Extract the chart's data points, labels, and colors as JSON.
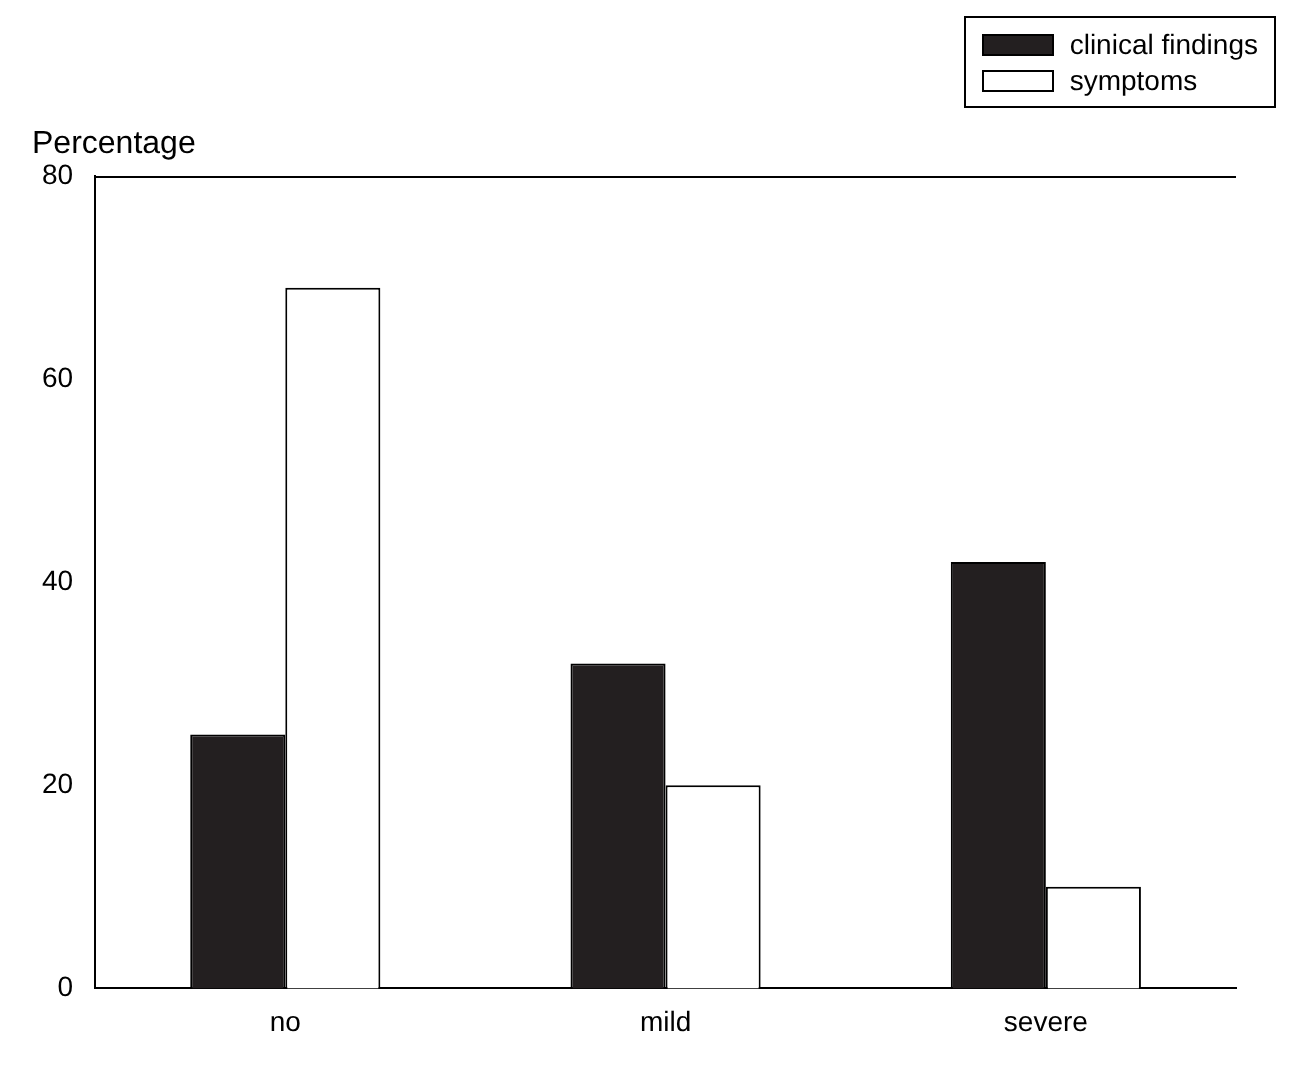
{
  "chart_data": {
    "type": "bar",
    "ylabel": "Percentage",
    "categories": [
      "no",
      "mild",
      "severe"
    ],
    "series": [
      {
        "name": "clinical findings",
        "color": "#231f20",
        "values": [
          25,
          32,
          42
        ]
      },
      {
        "name": "symptoms",
        "color": "#ffffff",
        "values": [
          69,
          20,
          10
        ]
      }
    ],
    "ylim": [
      0,
      80
    ],
    "yticks": [
      0,
      20,
      40,
      60,
      80
    ],
    "grid": false,
    "legend": "top right"
  }
}
